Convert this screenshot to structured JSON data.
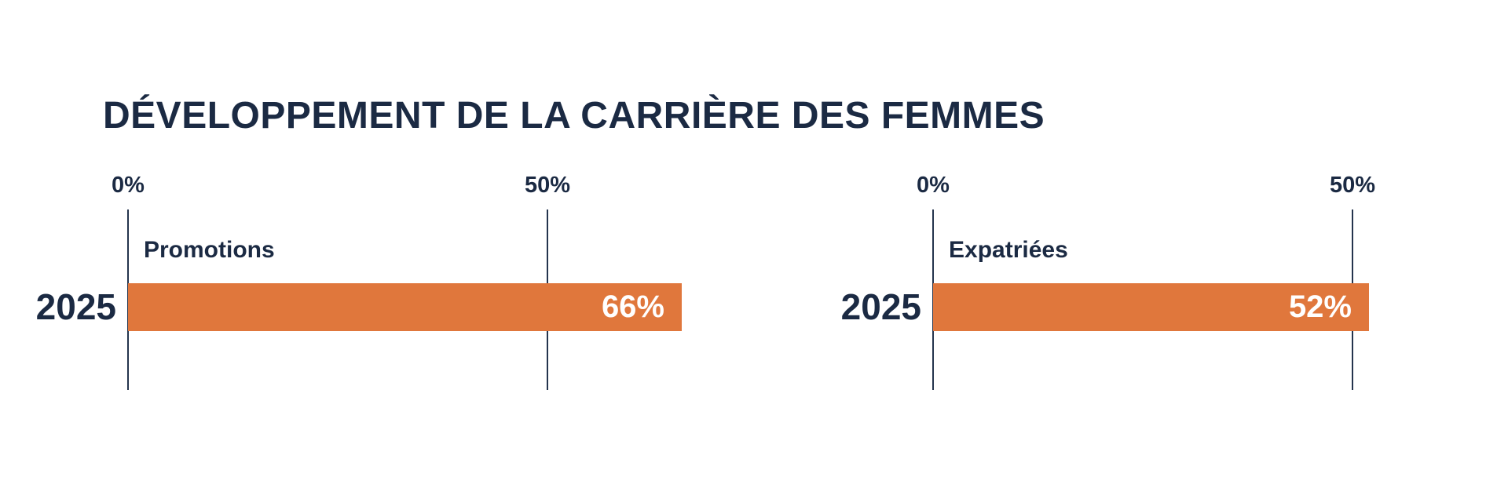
{
  "title": "DÉVELOPPEMENT DE LA CARRIÈRE DES FEMMES",
  "colors": {
    "background": "#FFFFFF",
    "bar": "#E0773C",
    "text": "#1B2A43",
    "axis_line": "#24344D",
    "value_text": "#FFFFFF"
  },
  "chart_data": [
    {
      "type": "bar",
      "orientation": "horizontal",
      "title": "Promotions",
      "categories": [
        "2025"
      ],
      "values": [
        66
      ],
      "value_labels": [
        "66%"
      ],
      "axis_ticks": [
        "0%",
        "50%"
      ],
      "axis_tick_values": [
        0,
        50
      ],
      "unit": "%",
      "grid": false,
      "legend": false
    },
    {
      "type": "bar",
      "orientation": "horizontal",
      "title": "Expatriées",
      "categories": [
        "2025"
      ],
      "values": [
        52
      ],
      "value_labels": [
        "52%"
      ],
      "axis_ticks": [
        "0%",
        "50%"
      ],
      "axis_tick_values": [
        0,
        50
      ],
      "unit": "%",
      "grid": false,
      "legend": false
    }
  ]
}
